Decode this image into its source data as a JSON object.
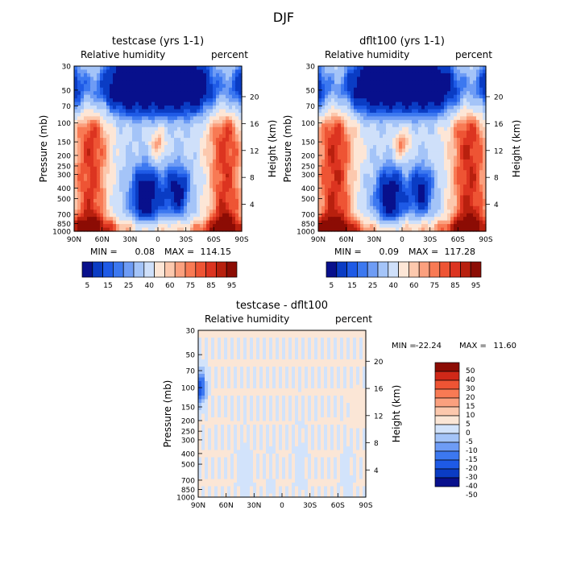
{
  "page_title": "DJF",
  "colors": {
    "abs_scale": [
      "#08108c",
      "#0a3cc4",
      "#1e5ae6",
      "#3c78f0",
      "#6e9cf5",
      "#a4c4f8",
      "#cfe0fa",
      "#fde6d6",
      "#fcc8ad",
      "#fba07e",
      "#f87a54",
      "#ee5434",
      "#dc3420",
      "#b8200e",
      "#8c0c04"
    ],
    "diff_scale": [
      "#08108c",
      "#0a3cc4",
      "#1e5ae6",
      "#3c78f0",
      "#6e9cf5",
      "#a4c4f8",
      "#d2e3fb",
      "#fbe6d6",
      "#fcc8ad",
      "#fba07e",
      "#f87a54",
      "#ee5434",
      "#d02818",
      "#8c0c04"
    ]
  },
  "chart_data": [
    {
      "id": "panel1",
      "type": "heatmap",
      "title": "testcase (yrs 1-1)",
      "left_label": "Relative humidity",
      "right_label": "percent",
      "ylabel": "Pressure (mb)",
      "ylabel_right": "Height (km)",
      "xticks": [
        "90N",
        "60N",
        "30N",
        "0",
        "30S",
        "60S",
        "90S"
      ],
      "yticks": [
        "30",
        "50",
        "70",
        "100",
        "150",
        "200",
        "250",
        "300",
        "400",
        "500",
        "700",
        "850",
        "1000"
      ],
      "ylevels": [
        30,
        50,
        70,
        100,
        150,
        200,
        250,
        300,
        400,
        500,
        700,
        850,
        1000
      ],
      "height_ticks": [
        {
          "km": 20,
          "label": "20"
        },
        {
          "km": 16,
          "label": "16"
        },
        {
          "km": 12,
          "label": "12"
        },
        {
          "km": 8,
          "label": "8"
        },
        {
          "km": 4,
          "label": "4"
        }
      ],
      "min_text": "MIN =",
      "min_value": "0.08",
      "max_text": "MAX =",
      "max_value": "114.15",
      "colorbar_labels": [
        "5",
        "15",
        "25",
        "40",
        "60",
        "75",
        "85",
        "95"
      ]
    },
    {
      "id": "panel2",
      "type": "heatmap",
      "title": "dflt100 (yrs 1-1)",
      "left_label": "Relative humidity",
      "right_label": "percent",
      "ylabel": "Pressure (mb)",
      "ylabel_right": "Height (km)",
      "xticks": [
        "90N",
        "60N",
        "30N",
        "0",
        "30S",
        "60S",
        "90S"
      ],
      "yticks": [
        "30",
        "50",
        "70",
        "100",
        "150",
        "200",
        "250",
        "300",
        "400",
        "500",
        "700",
        "850",
        "1000"
      ],
      "ylevels": [
        30,
        50,
        70,
        100,
        150,
        200,
        250,
        300,
        400,
        500,
        700,
        850,
        1000
      ],
      "height_ticks": [
        {
          "km": 20,
          "label": "20"
        },
        {
          "km": 16,
          "label": "16"
        },
        {
          "km": 12,
          "label": "12"
        },
        {
          "km": 8,
          "label": "8"
        },
        {
          "km": 4,
          "label": "4"
        }
      ],
      "min_text": "MIN =",
      "min_value": "0.09",
      "max_text": "MAX =",
      "max_value": "117.28",
      "colorbar_labels": [
        "5",
        "15",
        "25",
        "40",
        "60",
        "75",
        "85",
        "95"
      ]
    },
    {
      "id": "panel3",
      "type": "heatmap",
      "title": "testcase - dflt100",
      "left_label": "Relative humidity",
      "right_label": "percent",
      "ylabel": "Pressure (mb)",
      "ylabel_right": "Height (km)",
      "xticks": [
        "90N",
        "60N",
        "30N",
        "0",
        "30S",
        "60S",
        "90S"
      ],
      "yticks": [
        "30",
        "50",
        "70",
        "100",
        "150",
        "200",
        "250",
        "300",
        "400",
        "500",
        "700",
        "850",
        "1000"
      ],
      "ylevels": [
        30,
        50,
        70,
        100,
        150,
        200,
        250,
        300,
        400,
        500,
        700,
        850,
        1000
      ],
      "height_ticks": [
        {
          "km": 20,
          "label": "20"
        },
        {
          "km": 16,
          "label": "16"
        },
        {
          "km": 12,
          "label": "12"
        },
        {
          "km": 8,
          "label": "8"
        },
        {
          "km": 4,
          "label": "4"
        }
      ],
      "min_text": "MIN =",
      "min_value": "-22.24",
      "max_text": "MAX =",
      "max_value": "11.60",
      "colorbar_labels": [
        "50",
        "40",
        "30",
        "20",
        "15",
        "10",
        "5",
        "0",
        "-5",
        "-10",
        "-15",
        "-20",
        "-30",
        "-40",
        "-50"
      ]
    }
  ]
}
